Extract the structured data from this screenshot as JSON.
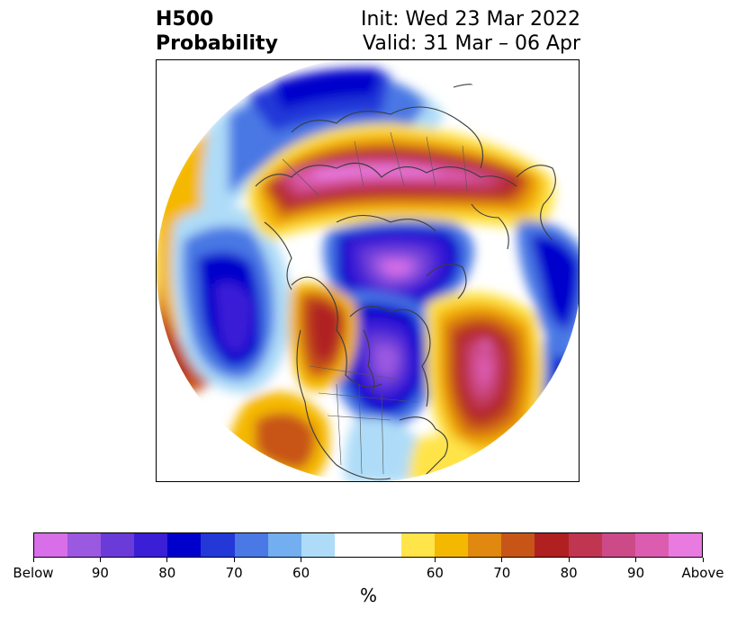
{
  "title": {
    "left_line1": "H500",
    "left_line2": "Probability",
    "right_line1": "Init: Wed 23 Mar 2022",
    "right_line2": "Valid: 31 Mar – 06 Apr"
  },
  "map": {
    "projection": "north-polar-stereographic",
    "features": [
      "coastlines",
      "country-borders",
      "us-state-borders"
    ]
  },
  "colorbar": {
    "colors": [
      "#d86ee8",
      "#9b58e0",
      "#6a3bd8",
      "#3a1fd6",
      "#0000cc",
      "#2438d8",
      "#4a78e4",
      "#72aef0",
      "#aedcf8",
      "#ffffff",
      "#ffffff",
      "#ffe44a",
      "#f5b800",
      "#e08810",
      "#c85518",
      "#b02020",
      "#c03650",
      "#cc4a88",
      "#dc5cb0",
      "#e87ae0"
    ],
    "tick_labels": [
      "Below",
      "90",
      "80",
      "70",
      "60",
      "60",
      "70",
      "80",
      "90",
      "Above"
    ],
    "unit": "%"
  }
}
